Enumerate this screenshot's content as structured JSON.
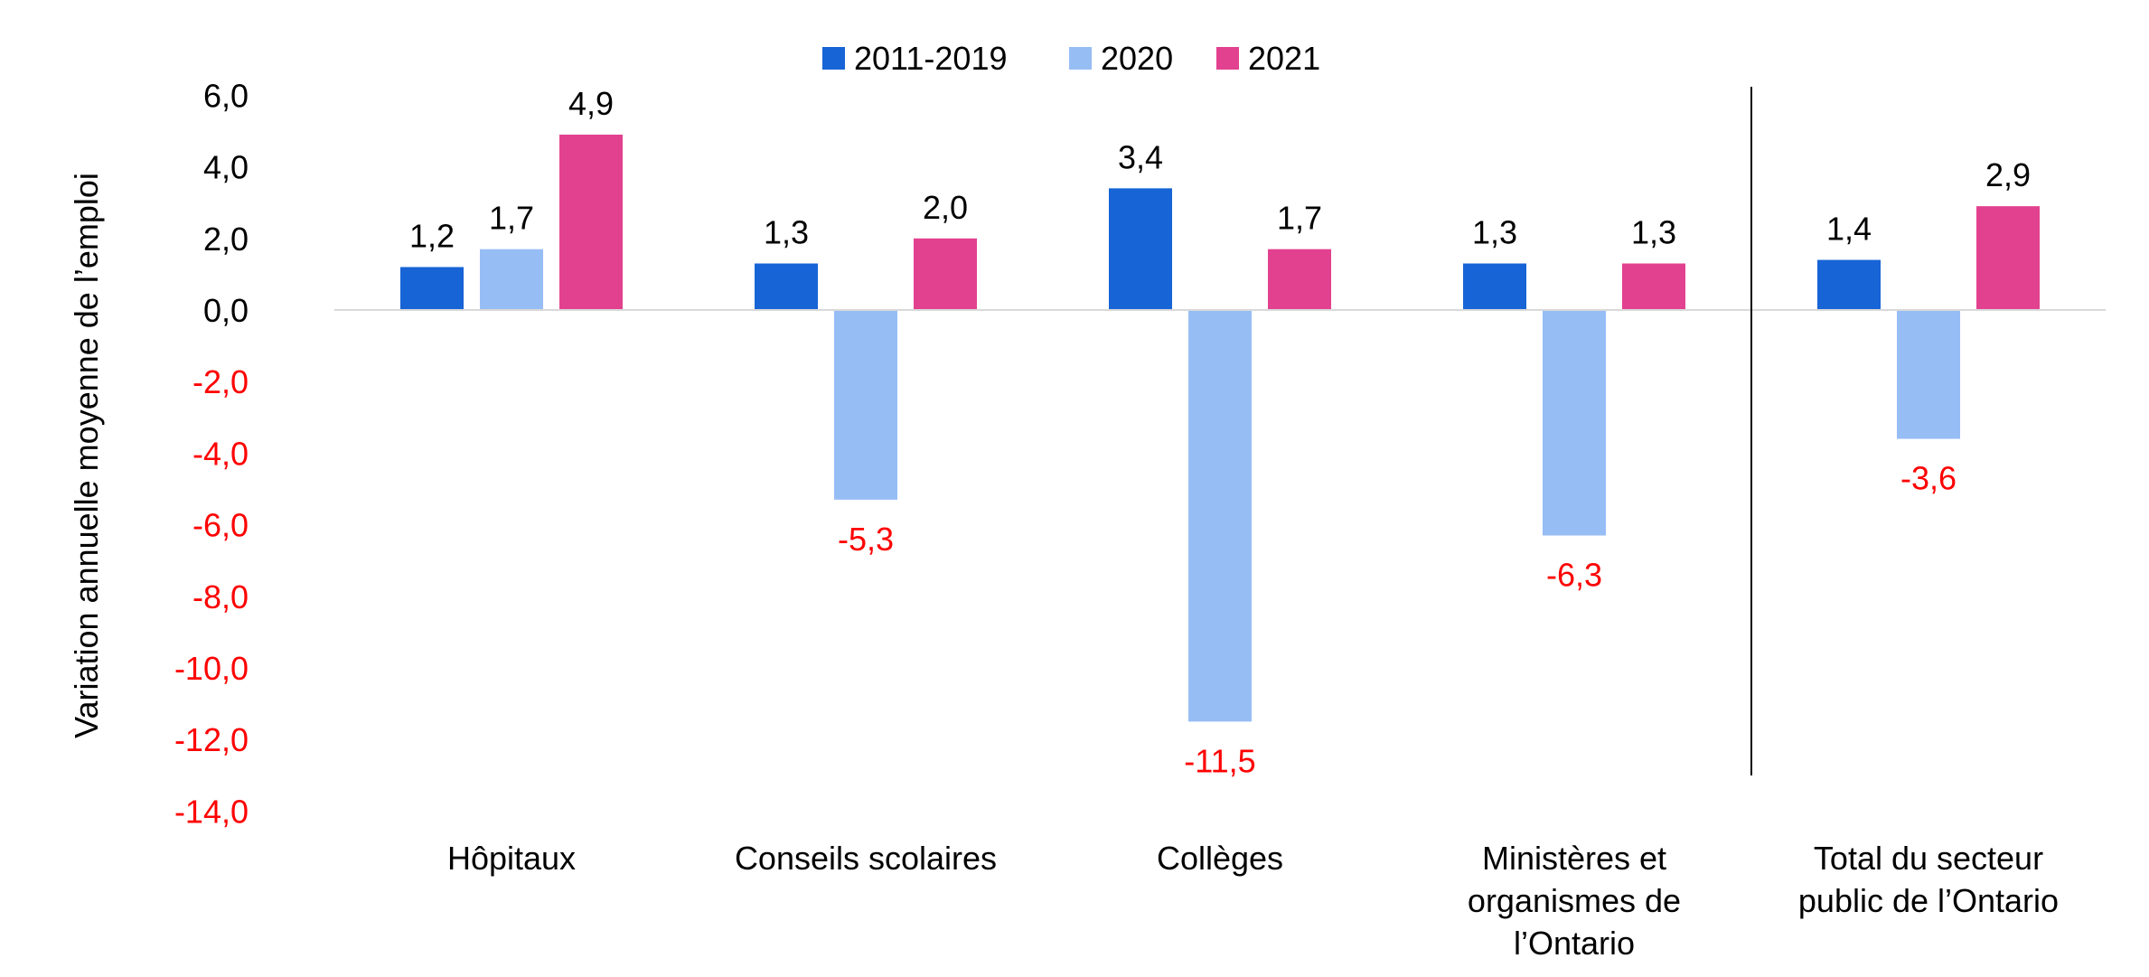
{
  "chart_data": {
    "type": "bar",
    "ylabel": "Variation annuelle moyenne de l’emploi",
    "ylim": [
      -14,
      6
    ],
    "y_ticks": [
      "6,0",
      "4,0",
      "2,0",
      "0,0",
      "-2,0",
      "-4,0",
      "-6,0",
      "-8,0",
      "-10,0",
      "-12,0",
      "-14,0"
    ],
    "y_tick_values": [
      6,
      4,
      2,
      0,
      -2,
      -4,
      -6,
      -8,
      -10,
      -12,
      -14
    ],
    "categories": [
      [
        "Hôpitaux"
      ],
      [
        "Conseils scolaires"
      ],
      [
        "Collèges"
      ],
      [
        "Ministères et",
        "organismes de",
        "l’Ontario"
      ],
      [
        "Total du secteur",
        "public de l’Ontario"
      ]
    ],
    "series": [
      {
        "name": "2011-2019",
        "color": "#1764d6",
        "values": [
          1.2,
          1.3,
          3.4,
          1.3,
          1.4
        ],
        "labels": [
          "1,2",
          "1,3",
          "3,4",
          "1,3",
          "1,4"
        ]
      },
      {
        "name": "2020",
        "color": "#97bdf5",
        "values": [
          1.7,
          -5.3,
          -11.5,
          -6.3,
          -3.6
        ],
        "labels": [
          "1,7",
          "-5,3",
          "-11,5",
          "-6,3",
          "-3,6"
        ]
      },
      {
        "name": "2021",
        "color": "#e2418f",
        "values": [
          4.9,
          2.0,
          1.7,
          1.3,
          2.9
        ],
        "labels": [
          "4,9",
          "2,0",
          "1,7",
          "1,3",
          "2,9"
        ]
      }
    ],
    "negative_color": "#ff0000",
    "positive_color": "#000000",
    "legend_position": "top",
    "separator_before_category": 4,
    "grid": false
  }
}
